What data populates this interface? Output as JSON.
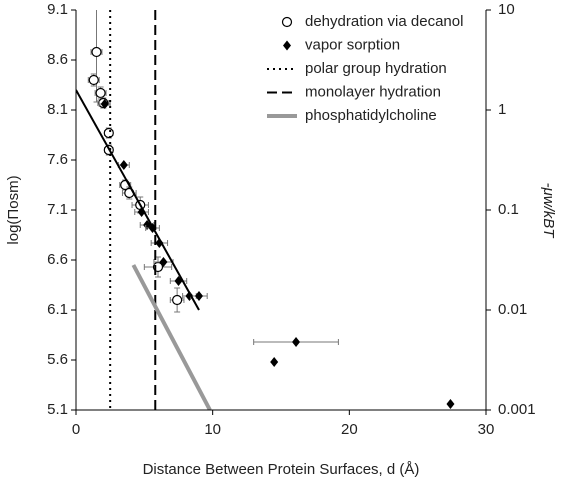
{
  "chart_data": {
    "type": "scatter",
    "xlabel": "Distance Between Protein Surfaces, d (Å)",
    "ylabel": "log(Πosm)",
    "y2label": "-μw/kBT",
    "xlim": [
      0,
      30
    ],
    "xticks": [
      0,
      10,
      20,
      30
    ],
    "ylim": [
      5.1,
      9.1
    ],
    "yticks": [
      5.1,
      5.6,
      6.1,
      6.6,
      7.1,
      7.6,
      8.1,
      8.6,
      9.1
    ],
    "y2lim": [
      0.001,
      10
    ],
    "y2ticks": [
      10,
      1,
      0.1,
      0.01,
      0.001
    ],
    "y2log": true,
    "series": [
      {
        "name": "dehydration via decanol",
        "kind": "scatter",
        "marker": "circle",
        "color": "#000000",
        "error_color": "#777777",
        "x": [
          1.5,
          1.3,
          1.8,
          2.0,
          2.4,
          2.4,
          3.6,
          3.9,
          4.7,
          6.0,
          7.4
        ],
        "values": [
          8.68,
          8.4,
          8.27,
          8.17,
          7.87,
          7.7,
          7.35,
          7.27,
          7.15,
          6.53,
          6.2
        ],
        "x_errors": [
          0.4,
          0.4,
          0.4,
          0.4,
          0.3,
          0.3,
          0.4,
          0.5,
          0.6,
          1.0,
          0.5
        ],
        "y_errors": [
          0.5,
          0.06,
          0.06,
          0.05,
          0.05,
          0.05,
          0.05,
          0.06,
          0.08,
          0.1,
          0.12
        ]
      },
      {
        "name": "vapor sorption",
        "kind": "scatter",
        "marker": "diamond",
        "color": "#000000",
        "error_color": "#777777",
        "x": [
          2.1,
          3.5,
          4.8,
          5.2,
          5.6,
          6.1,
          6.4,
          7.5,
          8.3,
          9.0,
          16.1,
          14.5,
          27.4
        ],
        "values": [
          8.16,
          7.55,
          7.08,
          6.95,
          6.92,
          6.77,
          6.58,
          6.39,
          6.24,
          6.24,
          5.78,
          5.58,
          5.16
        ],
        "x_errors": [
          0.4,
          0.4,
          0.5,
          0.5,
          0.5,
          0.6,
          0.7,
          0.6,
          0.5,
          0.6,
          3.1,
          0,
          0
        ]
      },
      {
        "name": "polar group hydration",
        "kind": "vline",
        "dash": "2,4",
        "color": "#000000",
        "x": [
          2.5
        ]
      },
      {
        "name": "monolayer hydration",
        "kind": "vline",
        "dash": "10,5",
        "color": "#000000",
        "x": [
          5.8
        ]
      },
      {
        "name": "phosphatidylcholine",
        "kind": "line",
        "color": "#999999",
        "width": 4,
        "x": [
          4.2,
          9.8
        ],
        "values": [
          6.55,
          5.1
        ]
      },
      {
        "kind": "line",
        "color": "#000000",
        "width": 2,
        "x": [
          0,
          9
        ],
        "values": [
          8.3,
          6.1
        ]
      }
    ]
  }
}
